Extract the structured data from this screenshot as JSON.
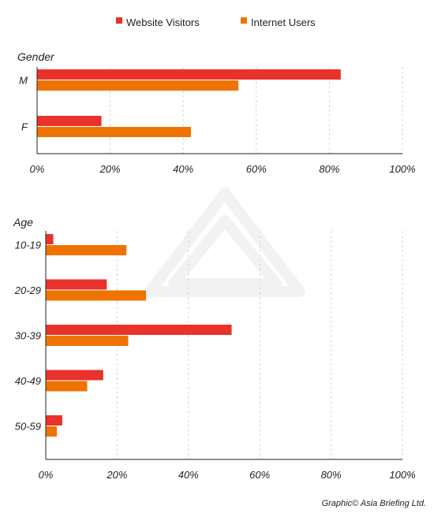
{
  "legend": [
    {
      "name": "Website Visitors",
      "color": "#e8322b"
    },
    {
      "name": "Internet Users",
      "color": "#ef7300"
    }
  ],
  "credit": "Graphic© Asia Briefing Ltd.",
  "chart_data": [
    {
      "type": "bar",
      "orientation": "horizontal",
      "title": "Gender",
      "categories": [
        "M",
        "F"
      ],
      "series": [
        {
          "name": "Website Visitors",
          "values": [
            83,
            17.5
          ]
        },
        {
          "name": "Internet Users",
          "values": [
            55,
            42
          ]
        }
      ],
      "xlim": [
        0,
        100
      ],
      "ticks": [
        "0%",
        "20%",
        "40%",
        "60%",
        "80%",
        "100%"
      ],
      "grid": true,
      "legend_position": "top"
    },
    {
      "type": "bar",
      "orientation": "horizontal",
      "title": "Age",
      "categories": [
        "10-19",
        "20-29",
        "30-39",
        "40-49",
        "50-59"
      ],
      "series": [
        {
          "name": "Website Visitors",
          "values": [
            2,
            17,
            52,
            16,
            4.5
          ]
        },
        {
          "name": "Internet Users",
          "values": [
            22.5,
            28,
            23,
            11.5,
            3
          ]
        }
      ],
      "xlim": [
        0,
        100
      ],
      "ticks": [
        "0%",
        "20%",
        "40%",
        "60%",
        "80%",
        "100%"
      ],
      "grid": true,
      "legend_position": "top"
    }
  ]
}
